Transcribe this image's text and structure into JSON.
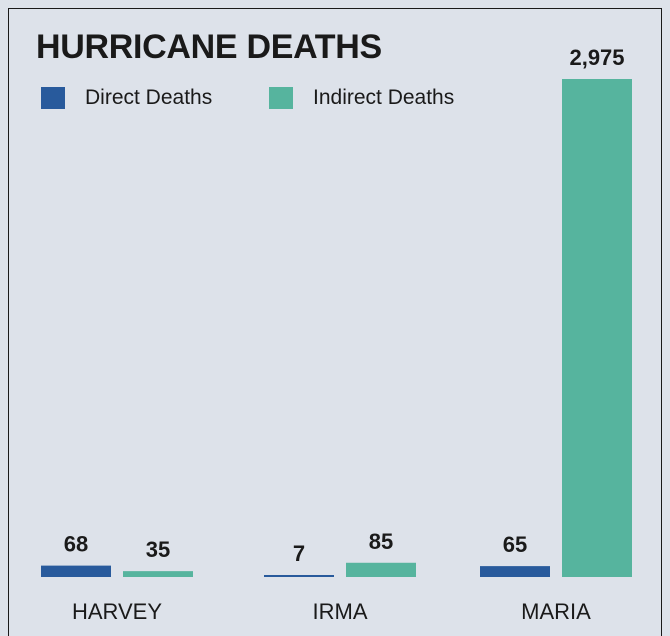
{
  "chart_data": {
    "type": "bar",
    "title": "HURRICANE DEATHS",
    "categories": [
      "HARVEY",
      "IRMA",
      "MARIA"
    ],
    "series": [
      {
        "name": "Direct Deaths",
        "values": [
          68,
          7,
          65
        ],
        "labels": [
          "68",
          "7",
          "65"
        ],
        "color": "#285a9c"
      },
      {
        "name": "Indirect Deaths",
        "values": [
          35,
          85,
          2975
        ],
        "labels": [
          "35",
          "85",
          "2,975"
        ],
        "color": "#56b49e"
      }
    ],
    "ylim": [
      0,
      2975
    ],
    "legend_position": "top-left",
    "grid": false
  }
}
